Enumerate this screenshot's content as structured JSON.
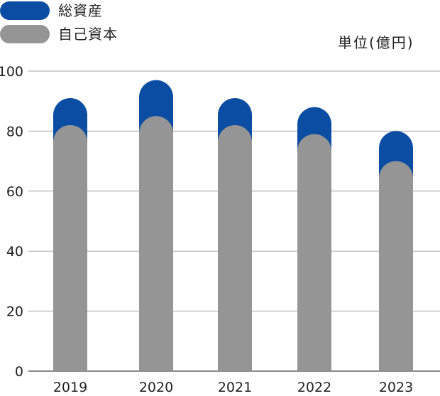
{
  "chart_data": {
    "type": "bar",
    "categories": [
      "2019",
      "2020",
      "2021",
      "2022",
      "2023"
    ],
    "series": [
      {
        "name": "総資産",
        "values": [
          91,
          97,
          91,
          88,
          80
        ],
        "color": "#0a4da2"
      },
      {
        "name": "自己資本",
        "values": [
          82,
          85,
          82,
          79,
          70
        ],
        "color": "#959595"
      }
    ],
    "unit": "単位(億円)",
    "ylim": [
      0,
      100
    ],
    "yticks": [
      "0",
      "20",
      "40",
      "60",
      "80",
      "100"
    ],
    "grid": true,
    "legend_position": "top-left"
  }
}
